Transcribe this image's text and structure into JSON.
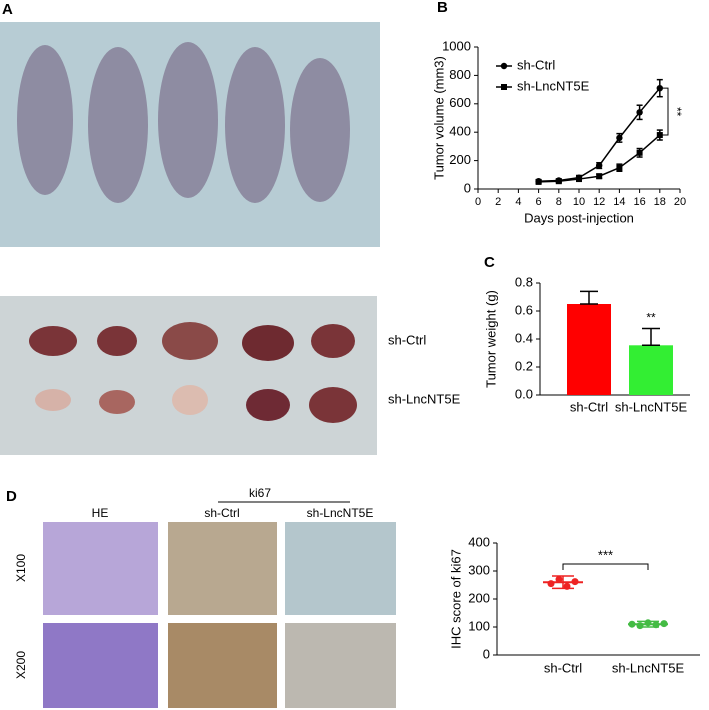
{
  "panels": {
    "A": {
      "label": "A",
      "tumor_rows": [
        "sh-Ctrl",
        "sh-LncNT5E"
      ]
    },
    "D": {
      "label": "D",
      "group": "ki67",
      "columns": [
        "HE",
        "sh-Ctrl",
        "sh-LncNT5E"
      ],
      "rows": [
        "X100",
        "X200"
      ]
    }
  },
  "chart_data": [
    {
      "type": "line",
      "panel": "B",
      "x_label": "Days post-injection",
      "y_label": "Tumor volume (mm3)",
      "x": [
        6,
        8,
        10,
        12,
        14,
        16,
        18
      ],
      "series": [
        {
          "name": "sh-Ctrl",
          "color": "#000000",
          "marker": "circle",
          "values": [
            55,
            60,
            80,
            165,
            360,
            540,
            710
          ],
          "errors": [
            10,
            10,
            15,
            20,
            30,
            50,
            60
          ]
        },
        {
          "name": "sh-LncNT5E",
          "color": "#000000",
          "marker": "square",
          "values": [
            50,
            55,
            70,
            90,
            150,
            255,
            380
          ],
          "errors": [
            10,
            10,
            10,
            15,
            25,
            30,
            35
          ]
        }
      ],
      "xlim": [
        0,
        20
      ],
      "xticks": [
        0,
        2,
        4,
        6,
        8,
        10,
        12,
        14,
        16,
        18,
        20
      ],
      "ylim": [
        0,
        1000
      ],
      "yticks": [
        0,
        200,
        400,
        600,
        800,
        1000
      ],
      "annotation": "**",
      "legend": "upper left"
    },
    {
      "type": "bar",
      "panel": "C",
      "y_label": "Tumor weight (g)",
      "categories": [
        "sh-Ctrl",
        "sh-LncNT5E"
      ],
      "values": [
        0.65,
        0.355
      ],
      "errors": [
        0.09,
        0.12
      ],
      "colors": [
        "#ff0000",
        "#33ee33"
      ],
      "ylim": [
        0,
        0.8
      ],
      "yticks": [
        {
          "value": 0,
          "label": "0.0"
        },
        0.2,
        0.4,
        0.6,
        0.8
      ],
      "annotation": "**"
    },
    {
      "type": "dot",
      "y_label": "IHC score of ki67",
      "categories": [
        "sh-Ctrl",
        "sh-LncNT5E"
      ],
      "groups": [
        {
          "color": "#ee2222",
          "values": [
            255,
            270,
            245,
            262
          ],
          "mean": 260,
          "sd": 22
        },
        {
          "color": "#44bb44",
          "values": [
            110,
            105,
            115,
            108,
            112
          ],
          "mean": 110,
          "sd": 10
        }
      ],
      "ylim": [
        0,
        400
      ],
      "yticks": [
        0,
        100,
        200,
        300,
        400
      ],
      "annotation": "***"
    }
  ]
}
